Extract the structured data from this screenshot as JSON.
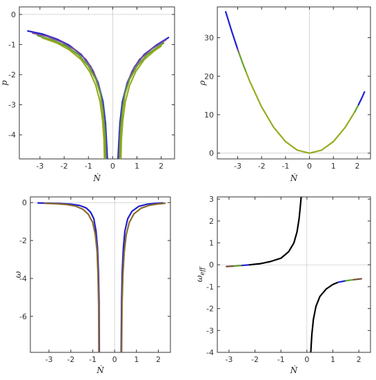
{
  "chart_data": [
    {
      "type": "line",
      "xlabel": "Ṅ",
      "ylabel": "p",
      "xlim": [
        -3.85,
        2.55
      ],
      "ylim": [
        -4.8,
        0.25
      ],
      "xticks": [
        -3,
        -2,
        -1,
        0,
        1,
        2
      ],
      "yticks": [
        0,
        -1,
        -2,
        -3,
        -4
      ],
      "tick_labels_x": [
        "-3",
        "-2",
        "-1",
        "0",
        "1",
        "2"
      ],
      "tick_labels_y": [
        "0",
        "-1",
        "-2",
        "-3",
        "-4"
      ],
      "series": [
        {
          "color": "#1f1fd0",
          "points": [
            [
              -3.5,
              -0.55
            ],
            [
              -2.9,
              -0.65
            ],
            [
              -2.3,
              -0.82
            ],
            [
              -1.8,
              -1.02
            ],
            [
              -1.3,
              -1.33
            ],
            [
              -0.9,
              -1.74
            ],
            [
              -0.6,
              -2.27
            ],
            [
              -0.4,
              -2.9
            ],
            [
              -0.3,
              -3.6
            ],
            [
              -0.25,
              -4.3
            ],
            [
              -0.22,
              -4.8
            ]
          ]
        },
        {
          "color": "#1f1fd0",
          "points": [
            [
              0.22,
              -4.8
            ],
            [
              0.25,
              -4.3
            ],
            [
              0.3,
              -3.6
            ],
            [
              0.4,
              -2.9
            ],
            [
              0.6,
              -2.27
            ],
            [
              0.9,
              -1.74
            ],
            [
              1.3,
              -1.33
            ],
            [
              1.8,
              -1.02
            ],
            [
              2.3,
              -0.77
            ]
          ]
        },
        {
          "color": "#7a4aa0",
          "points": [
            [
              -3.3,
              -0.62
            ],
            [
              -2.7,
              -0.73
            ],
            [
              -2.1,
              -0.92
            ],
            [
              -1.6,
              -1.15
            ],
            [
              -1.1,
              -1.5
            ],
            [
              -0.8,
              -1.88
            ],
            [
              -0.55,
              -2.43
            ],
            [
              -0.42,
              -2.98
            ],
            [
              -0.33,
              -3.65
            ],
            [
              -0.28,
              -4.3
            ],
            [
              -0.26,
              -4.8
            ]
          ]
        },
        {
          "color": "#7a4aa0",
          "points": [
            [
              0.26,
              -4.8
            ],
            [
              0.28,
              -4.3
            ],
            [
              0.33,
              -3.65
            ],
            [
              0.42,
              -2.98
            ],
            [
              0.55,
              -2.43
            ],
            [
              0.8,
              -1.88
            ],
            [
              1.1,
              -1.5
            ],
            [
              1.6,
              -1.15
            ],
            [
              2.2,
              -0.84
            ]
          ]
        },
        {
          "color": "#5fa32a",
          "points": [
            [
              -3.1,
              -0.7
            ],
            [
              -2.5,
              -0.85
            ],
            [
              -1.9,
              -1.06
            ],
            [
              -1.4,
              -1.35
            ],
            [
              -1.0,
              -1.72
            ],
            [
              -0.7,
              -2.15
            ],
            [
              -0.5,
              -2.65
            ],
            [
              -0.4,
              -3.2
            ],
            [
              -0.33,
              -3.8
            ],
            [
              -0.3,
              -4.4
            ],
            [
              -0.29,
              -4.8
            ]
          ]
        },
        {
          "color": "#5fa32a",
          "points": [
            [
              0.29,
              -4.8
            ],
            [
              0.3,
              -4.4
            ],
            [
              0.33,
              -3.8
            ],
            [
              0.4,
              -3.2
            ],
            [
              0.5,
              -2.65
            ],
            [
              0.7,
              -2.15
            ],
            [
              1.0,
              -1.72
            ],
            [
              1.4,
              -1.35
            ],
            [
              1.9,
              -1.06
            ],
            [
              2.1,
              -0.95
            ]
          ]
        },
        {
          "color": "#9aaa1f",
          "points": [
            [
              -2.9,
              -0.78
            ],
            [
              -2.3,
              -0.95
            ],
            [
              -1.8,
              -1.17
            ],
            [
              -1.3,
              -1.5
            ],
            [
              -0.95,
              -1.9
            ],
            [
              -0.7,
              -2.35
            ],
            [
              -0.52,
              -2.9
            ],
            [
              -0.42,
              -3.5
            ],
            [
              -0.36,
              -4.15
            ],
            [
              -0.34,
              -4.8
            ]
          ]
        },
        {
          "color": "#9aaa1f",
          "points": [
            [
              0.34,
              -4.8
            ],
            [
              0.36,
              -4.15
            ],
            [
              0.42,
              -3.5
            ],
            [
              0.52,
              -2.9
            ],
            [
              0.7,
              -2.35
            ],
            [
              0.95,
              -1.9
            ],
            [
              1.3,
              -1.5
            ],
            [
              1.7,
              -1.22
            ],
            [
              2.0,
              -1.05
            ]
          ]
        }
      ]
    },
    {
      "type": "line",
      "xlabel": "Ṅ",
      "ylabel": "ρ",
      "xlim": [
        -3.85,
        2.55
      ],
      "ylim": [
        -1.5,
        38.0
      ],
      "xticks": [
        -3,
        -2,
        -1,
        0,
        1,
        2
      ],
      "yticks": [
        0,
        10,
        20,
        30
      ],
      "tick_labels_x": [
        "-3",
        "-2",
        "-1",
        "0",
        "1",
        "2"
      ],
      "tick_labels_y": [
        "0",
        "10",
        "20",
        "30"
      ],
      "series": [
        {
          "color": "#1f1fd0",
          "points": [
            [
              -3.5,
              36.75
            ],
            [
              -3.25,
              31.7
            ],
            [
              -3.0,
              27.0
            ]
          ]
        },
        {
          "color": "#7a4aa0",
          "points": [
            [
              -3.0,
              27.0
            ],
            [
              -2.95,
              26.1
            ]
          ]
        },
        {
          "color": "#5fa32a",
          "points": [
            [
              -2.95,
              26.1
            ],
            [
              -2.8,
              23.5
            ],
            [
              -2.65,
              21.1
            ]
          ]
        },
        {
          "color": "#9aaa1f",
          "points": [
            [
              -2.65,
              21.1
            ],
            [
              -2.5,
              18.75
            ],
            [
              -2.0,
              12.0
            ],
            [
              -1.5,
              6.75
            ],
            [
              -1.0,
              3.0
            ],
            [
              -0.5,
              0.75
            ],
            [
              0.0,
              0.0
            ],
            [
              0.5,
              0.75
            ],
            [
              1.0,
              3.0
            ],
            [
              1.5,
              6.75
            ],
            [
              1.9,
              10.8
            ]
          ]
        },
        {
          "color": "#5fa32a",
          "points": [
            [
              1.9,
              10.8
            ],
            [
              2.0,
              12.0
            ],
            [
              2.05,
              12.6
            ]
          ]
        },
        {
          "color": "#1f1fd0",
          "points": [
            [
              2.05,
              12.6
            ],
            [
              2.2,
              14.5
            ],
            [
              2.3,
              15.9
            ]
          ]
        }
      ]
    },
    {
      "type": "line",
      "xlabel": "Ṅ",
      "ylabel": "ω",
      "xlim": [
        -3.85,
        2.55
      ],
      "ylim": [
        -7.9,
        0.3
      ],
      "xticks": [
        -3,
        -2,
        -1,
        0,
        1,
        2
      ],
      "yticks": [
        0,
        -2,
        -4,
        -6
      ],
      "tick_labels_x": [
        "-3",
        "-2",
        "-1",
        "0",
        "1",
        "2"
      ],
      "tick_labels_y": [
        "0",
        "-2",
        "-4",
        "-6"
      ],
      "series": [
        {
          "color": "#1f1fd0",
          "points": [
            [
              -3.5,
              -0.02
            ],
            [
              -3.0,
              -0.03
            ],
            [
              -2.5,
              -0.05
            ],
            [
              -2.0,
              -0.08
            ],
            [
              -1.6,
              -0.15
            ],
            [
              -1.3,
              -0.28
            ],
            [
              -1.1,
              -0.5
            ],
            [
              -0.95,
              -0.85
            ],
            [
              -0.85,
              -1.5
            ],
            [
              -0.78,
              -2.4
            ],
            [
              -0.74,
              -3.6
            ],
            [
              -0.71,
              -5.2
            ],
            [
              -0.7,
              -7.9
            ]
          ]
        },
        {
          "color": "#1f1fd0",
          "points": [
            [
              0.3,
              -7.9
            ],
            [
              0.32,
              -5.2
            ],
            [
              0.35,
              -3.6
            ],
            [
              0.4,
              -2.4
            ],
            [
              0.47,
              -1.5
            ],
            [
              0.6,
              -0.85
            ],
            [
              0.8,
              -0.45
            ],
            [
              1.1,
              -0.2
            ],
            [
              1.5,
              -0.08
            ],
            [
              1.9,
              -0.04
            ],
            [
              2.2,
              -0.02
            ]
          ]
        },
        {
          "color": "#8a6a2a",
          "points": [
            [
              -3.2,
              -0.04
            ],
            [
              -2.7,
              -0.06
            ],
            [
              -2.2,
              -0.1
            ],
            [
              -1.8,
              -0.18
            ],
            [
              -1.45,
              -0.35
            ],
            [
              -1.2,
              -0.62
            ],
            [
              -1.0,
              -1.05
            ],
            [
              -0.88,
              -1.7
            ],
            [
              -0.8,
              -2.6
            ],
            [
              -0.76,
              -3.8
            ],
            [
              -0.73,
              -5.4
            ],
            [
              -0.72,
              -7.9
            ]
          ]
        },
        {
          "color": "#8a6a2a",
          "points": [
            [
              0.32,
              -7.9
            ],
            [
              0.34,
              -5.4
            ],
            [
              0.38,
              -3.8
            ],
            [
              0.44,
              -2.6
            ],
            [
              0.53,
              -1.7
            ],
            [
              0.67,
              -1.05
            ],
            [
              0.88,
              -0.6
            ],
            [
              1.2,
              -0.3
            ],
            [
              1.6,
              -0.14
            ],
            [
              2.0,
              -0.07
            ],
            [
              2.3,
              -0.04
            ]
          ]
        }
      ]
    },
    {
      "type": "line",
      "xlabel": "Ṅ",
      "ylabel": "ω_eff",
      "xlim": [
        -3.45,
        2.45
      ],
      "ylim": [
        -4.0,
        3.1
      ],
      "xticks": [
        -3,
        -2,
        -1,
        0,
        1,
        2
      ],
      "yticks": [
        3,
        2,
        1,
        0,
        -1,
        -2,
        -3,
        -4
      ],
      "tick_labels_x": [
        "-3",
        "-2",
        "-1",
        "0",
        "1",
        "2"
      ],
      "tick_labels_y": [
        "3",
        "2",
        "1",
        "0",
        "-1",
        "-2",
        "-3",
        "-4"
      ],
      "series": [
        {
          "color": "#7a4a3a",
          "points": [
            [
              -3.1,
              -0.08
            ],
            [
              -2.8,
              -0.06
            ]
          ]
        },
        {
          "color": "#5fa32a",
          "points": [
            [
              -2.8,
              -0.06
            ],
            [
              -2.5,
              -0.03
            ]
          ]
        },
        {
          "color": "#1f1fd0",
          "points": [
            [
              -2.5,
              -0.03
            ],
            [
              -2.2,
              0.0
            ]
          ]
        },
        {
          "color": "#000000",
          "points": [
            [
              -2.2,
              0.0
            ],
            [
              -1.8,
              0.05
            ],
            [
              -1.4,
              0.15
            ],
            [
              -1.0,
              0.3
            ],
            [
              -0.7,
              0.6
            ],
            [
              -0.5,
              1.0
            ],
            [
              -0.38,
              1.5
            ],
            [
              -0.3,
              2.1
            ],
            [
              -0.25,
              2.7
            ],
            [
              -0.22,
              3.1
            ]
          ]
        },
        {
          "color": "#000000",
          "points": [
            [
              0.15,
              -4.0
            ],
            [
              0.19,
              -3.2
            ],
            [
              0.25,
              -2.5
            ],
            [
              0.35,
              -1.9
            ],
            [
              0.5,
              -1.45
            ],
            [
              0.75,
              -1.1
            ],
            [
              1.0,
              -0.9
            ],
            [
              1.2,
              -0.8
            ]
          ]
        },
        {
          "color": "#1f1fd0",
          "points": [
            [
              1.2,
              -0.8
            ],
            [
              1.5,
              -0.73
            ]
          ]
        },
        {
          "color": "#5fa32a",
          "points": [
            [
              1.5,
              -0.73
            ],
            [
              1.8,
              -0.68
            ]
          ]
        },
        {
          "color": "#7a4a3a",
          "points": [
            [
              1.8,
              -0.68
            ],
            [
              2.1,
              -0.64
            ]
          ]
        }
      ]
    }
  ]
}
